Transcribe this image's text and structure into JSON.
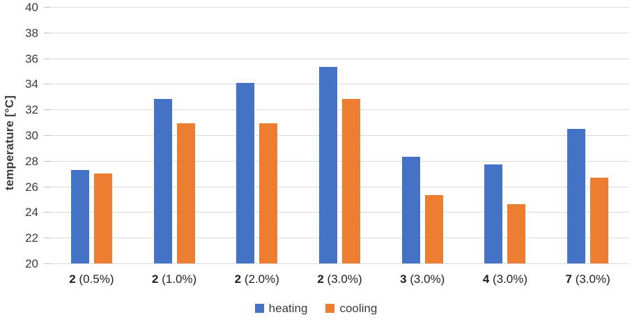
{
  "chart_data": {
    "type": "bar",
    "title": "",
    "xlabel": "",
    "ylabel": "temperature [°C]",
    "ylim": [
      20,
      40
    ],
    "ytick_step": 2,
    "grid": true,
    "legend_position": "bottom",
    "categories": [
      "2 (0.5%)",
      "2 (1.0%)",
      "2 (2.0%)",
      "2 (3.0%)",
      "3 (3.0%)",
      "4 (3.0%)",
      "7 (3.0%)"
    ],
    "category_parts": [
      {
        "bold": "2",
        "rest": "(0.5%)"
      },
      {
        "bold": "2",
        "rest": "(1.0%)"
      },
      {
        "bold": "2",
        "rest": "(2.0%)"
      },
      {
        "bold": "2",
        "rest": "(3.0%)"
      },
      {
        "bold": "3",
        "rest": "(3.0%)"
      },
      {
        "bold": "4",
        "rest": "(3.0%)"
      },
      {
        "bold": "7",
        "rest": "(3.0%)"
      }
    ],
    "series": [
      {
        "name": "heating",
        "color": "#4472C4",
        "values": [
          27.3,
          32.8,
          34.1,
          35.3,
          28.3,
          27.7,
          30.5
        ]
      },
      {
        "name": "cooling",
        "color": "#ED7D31",
        "values": [
          27.0,
          30.9,
          30.9,
          32.8,
          25.3,
          24.6,
          26.7
        ]
      }
    ],
    "colors": {
      "gridline": "#d9d9d9",
      "tick_mark": "#bfbfbf",
      "tick_text": "#3b3b3b",
      "category_text": "#1f1f1f"
    }
  }
}
